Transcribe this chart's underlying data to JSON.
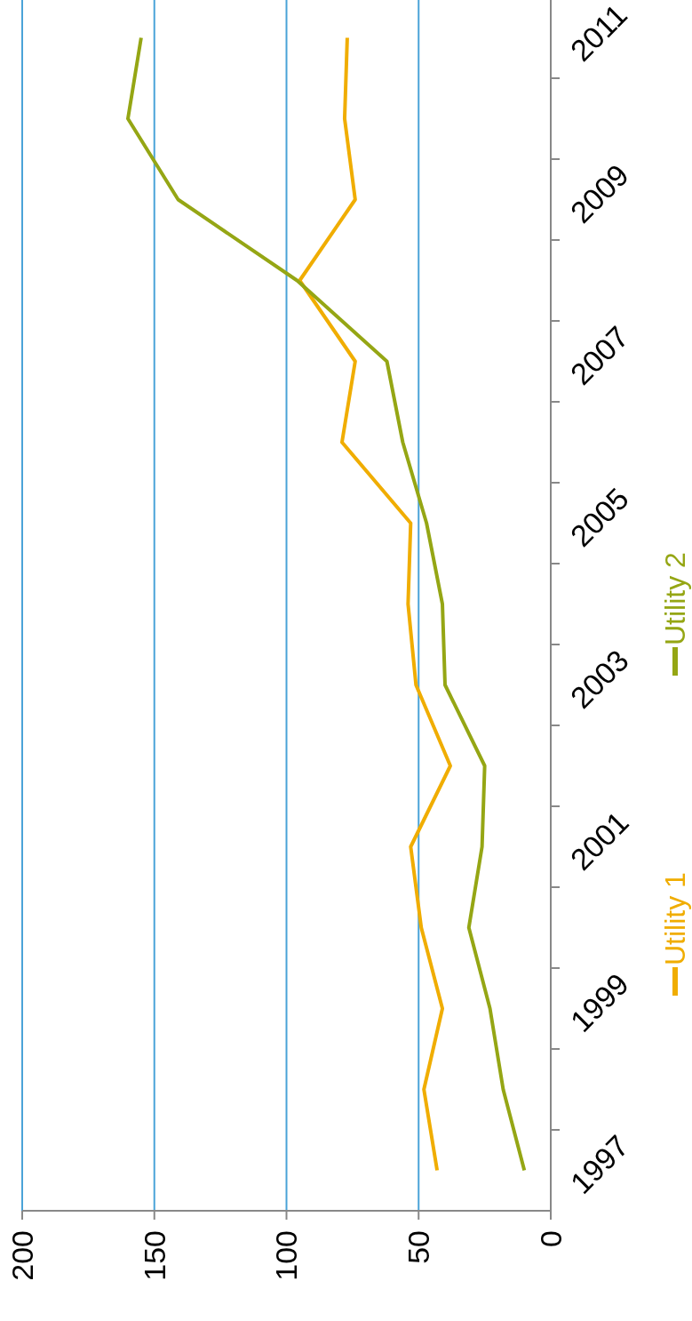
{
  "chart_data": {
    "type": "line",
    "orientation": "horizontal",
    "categories": [
      "2011",
      null,
      "2009",
      null,
      "2007",
      null,
      "2005",
      null,
      "2003",
      null,
      "2001",
      null,
      "1999",
      null,
      "1997"
    ],
    "series": [
      {
        "name": "Utility 1",
        "color": "#f0ad00",
        "values": [
          77,
          78,
          74,
          95,
          74,
          79,
          53,
          54,
          51,
          38,
          53,
          49,
          41,
          48,
          43
        ]
      },
      {
        "name": "Utility 2",
        "color": "#95a614",
        "values": [
          155,
          160,
          141,
          96,
          62,
          56,
          47,
          41,
          40,
          25,
          26,
          31,
          23,
          18,
          10
        ]
      }
    ],
    "xlim": [
      200,
      0
    ],
    "xticks": [
      0,
      50,
      100,
      150,
      200
    ],
    "grid": "x",
    "legend": "bottom",
    "marker": "none",
    "line_style": "solid"
  }
}
